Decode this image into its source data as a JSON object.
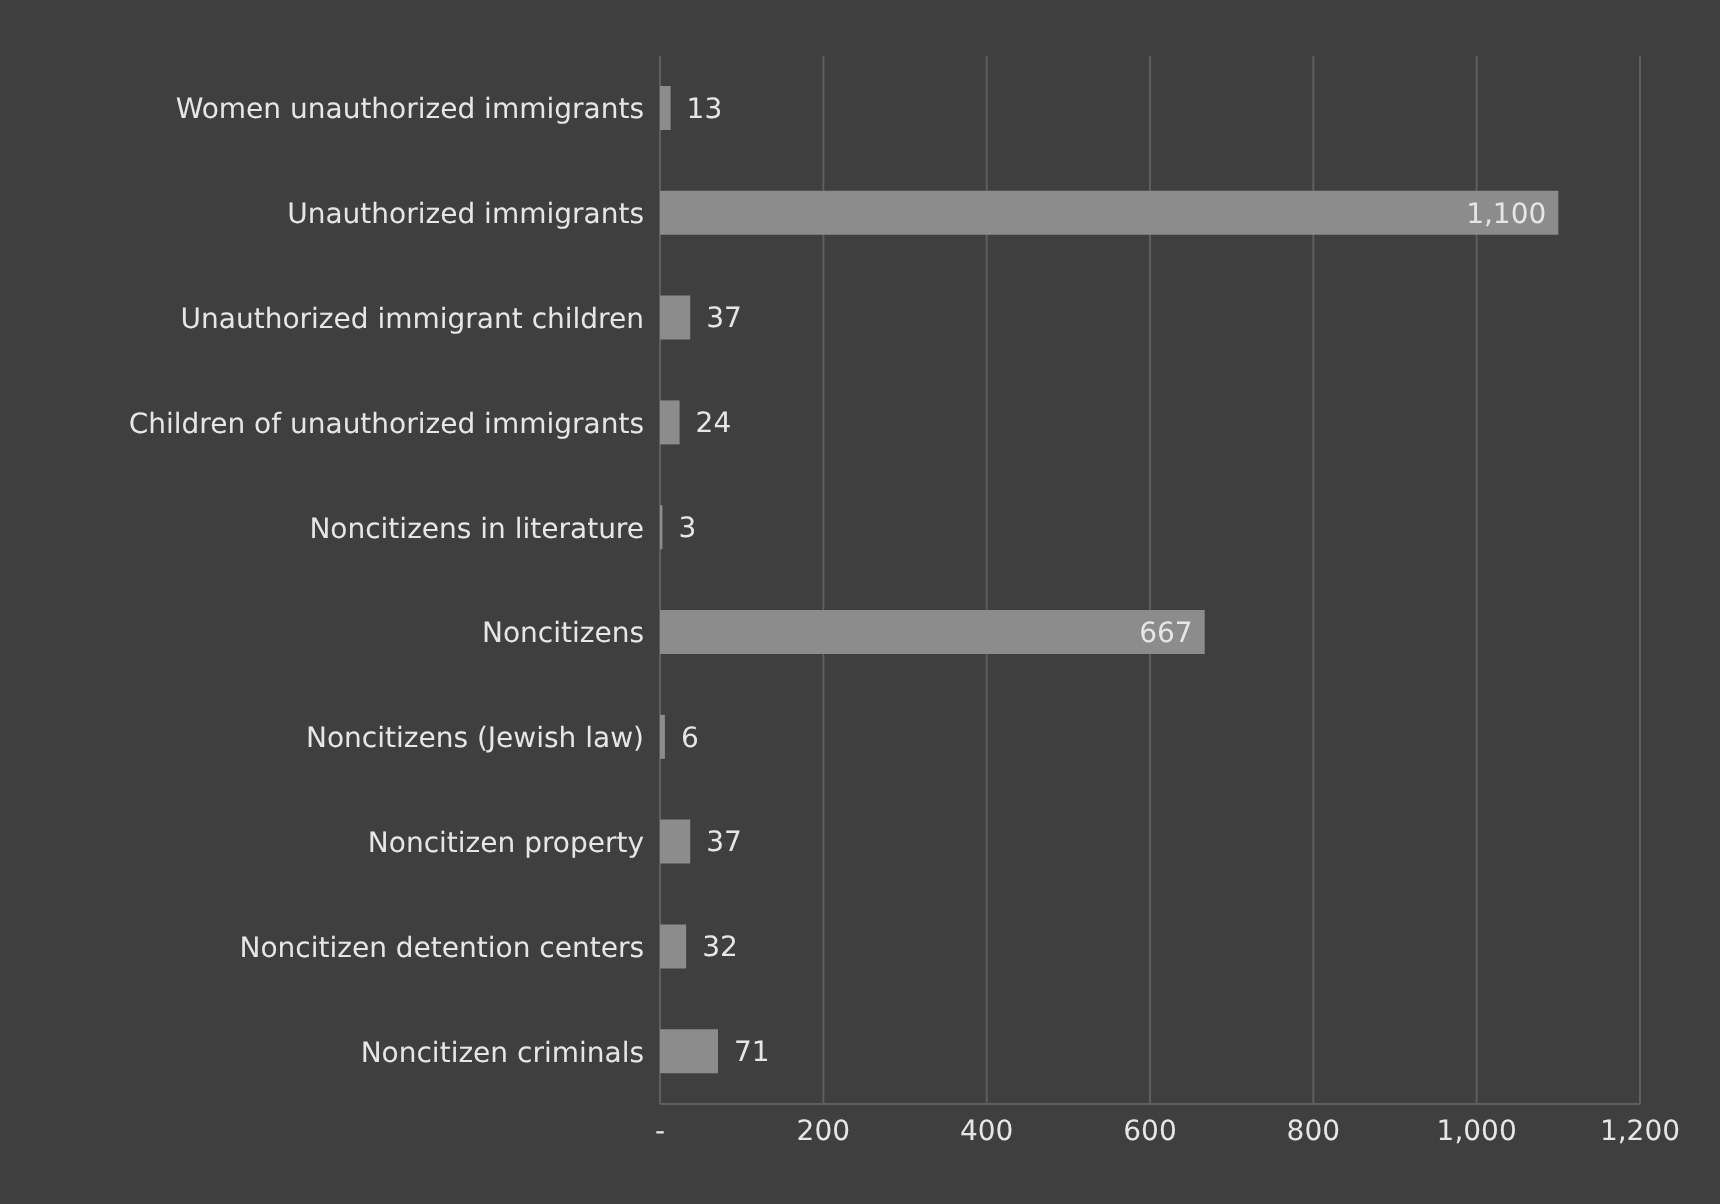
{
  "chart_data": {
    "type": "bar",
    "orientation": "horizontal",
    "categories": [
      "Women unauthorized immigrants",
      "Unauthorized immigrants",
      "Unauthorized immigrant children",
      "Children of unauthorized immigrants",
      "Noncitizens in literature",
      "Noncitizens",
      "Noncitizens (Jewish law)",
      "Noncitizen property",
      "Noncitizen detention centers",
      "Noncitizen criminals"
    ],
    "values": [
      13,
      1100,
      37,
      24,
      3,
      667,
      6,
      37,
      32,
      71
    ],
    "value_labels": [
      "13",
      "1,100",
      "37",
      "24",
      "3",
      "667",
      "6",
      "37",
      "32",
      "71"
    ],
    "color": "#8c8c8c",
    "xlim": [
      0,
      1200
    ],
    "xticks": [
      {
        "value": 0,
        "label": "-"
      },
      200,
      400,
      600,
      800,
      {
        "value": 1000,
        "label": "1,000"
      },
      {
        "value": 1200,
        "label": "1,200"
      }
    ],
    "grid": "x"
  }
}
